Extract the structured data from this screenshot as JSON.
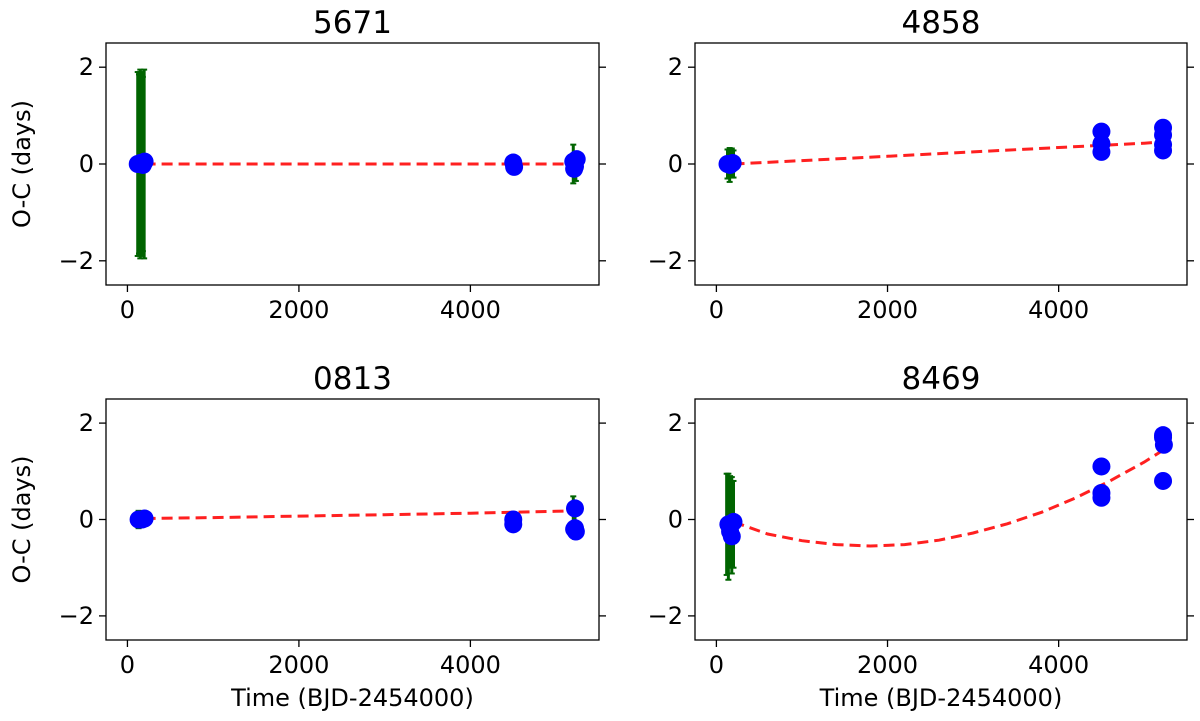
{
  "chart_data": [
    {
      "type": "scatter",
      "title": "5671",
      "xlabel": "",
      "ylabel": "O-C (days)",
      "xlim": [
        -250,
        5500
      ],
      "ylim": [
        -2.5,
        2.5
      ],
      "xticks": [
        0,
        2000,
        4000
      ],
      "yticks": [
        -2,
        0,
        2
      ],
      "xtick_labels": [
        "0",
        "2000",
        "4000"
      ],
      "ytick_labels": [
        "−2",
        "0",
        "2"
      ],
      "colors": {
        "points": "#0000ff",
        "errorbars": "#006400",
        "fit": "#ff2020"
      },
      "errorbars": [
        {
          "x": 120,
          "y": 0.0,
          "err": 1.9
        },
        {
          "x": 135,
          "y": 0.0,
          "err": 1.85
        },
        {
          "x": 150,
          "y": 0.0,
          "err": 1.95
        },
        {
          "x": 165,
          "y": 0.0,
          "err": 1.9
        },
        {
          "x": 180,
          "y": 0.0,
          "err": 1.8
        },
        {
          "x": 195,
          "y": 0.0,
          "err": 1.95
        },
        {
          "x": 5200,
          "y": 0.0,
          "err": 0.4
        },
        {
          "x": 5230,
          "y": -0.05,
          "err": 0.3
        }
      ],
      "points": [
        {
          "x": 120,
          "y": 0.0
        },
        {
          "x": 150,
          "y": 0.02
        },
        {
          "x": 180,
          "y": -0.02
        },
        {
          "x": 200,
          "y": 0.05
        },
        {
          "x": 4500,
          "y": 0.03
        },
        {
          "x": 4510,
          "y": -0.06
        },
        {
          "x": 5200,
          "y": 0.05
        },
        {
          "x": 5220,
          "y": -0.05
        },
        {
          "x": 5240,
          "y": 0.1
        },
        {
          "x": 5210,
          "y": -0.1
        }
      ],
      "fit": {
        "x": [
          200,
          1000,
          2000,
          3000,
          4000,
          5000,
          5250
        ],
        "y": [
          0.0,
          0.0,
          0.0,
          0.0,
          0.0,
          0.0,
          0.0
        ]
      }
    },
    {
      "type": "scatter",
      "title": "4858",
      "xlabel": "",
      "ylabel": "",
      "xlim": [
        -250,
        5500
      ],
      "ylim": [
        -2.5,
        2.5
      ],
      "xticks": [
        0,
        2000,
        4000
      ],
      "yticks": [
        -2,
        0,
        2
      ],
      "xtick_labels": [
        "0",
        "2000",
        "4000"
      ],
      "ytick_labels": [
        "−2",
        "0",
        "2"
      ],
      "colors": {
        "points": "#0000ff",
        "errorbars": "#006400",
        "fit": "#ff2020"
      },
      "errorbars": [
        {
          "x": 130,
          "y": 0.0,
          "err": 0.3
        },
        {
          "x": 155,
          "y": -0.02,
          "err": 0.35
        },
        {
          "x": 180,
          "y": 0.02,
          "err": 0.3
        },
        {
          "x": 200,
          "y": 0.0,
          "err": 0.28
        }
      ],
      "points": [
        {
          "x": 130,
          "y": 0.0
        },
        {
          "x": 160,
          "y": -0.02
        },
        {
          "x": 190,
          "y": 0.02
        },
        {
          "x": 4500,
          "y": 0.67
        },
        {
          "x": 4500,
          "y": 0.42
        },
        {
          "x": 4500,
          "y": 0.25
        },
        {
          "x": 5220,
          "y": 0.75
        },
        {
          "x": 5220,
          "y": 0.6
        },
        {
          "x": 5220,
          "y": 0.4
        },
        {
          "x": 5220,
          "y": 0.28
        }
      ],
      "fit": {
        "x": [
          200,
          1000,
          2000,
          3000,
          4000,
          5000,
          5250
        ],
        "y": [
          0.0,
          0.07,
          0.16,
          0.25,
          0.34,
          0.43,
          0.46
        ]
      }
    },
    {
      "type": "scatter",
      "title": "0813",
      "xlabel": "Time (BJD-2454000)",
      "ylabel": "O-C (days)",
      "xlim": [
        -250,
        5500
      ],
      "ylim": [
        -2.5,
        2.5
      ],
      "xticks": [
        0,
        2000,
        4000
      ],
      "yticks": [
        -2,
        0,
        2
      ],
      "xtick_labels": [
        "0",
        "2000",
        "4000"
      ],
      "ytick_labels": [
        "−2",
        "0",
        "2"
      ],
      "colors": {
        "points": "#0000ff",
        "errorbars": "#006400",
        "fit": "#ff2020"
      },
      "errorbars": [
        {
          "x": 130,
          "y": 0.0,
          "err": 0.18
        },
        {
          "x": 170,
          "y": 0.02,
          "err": 0.15
        },
        {
          "x": 5200,
          "y": 0.2,
          "err": 0.28
        },
        {
          "x": 5220,
          "y": -0.15,
          "err": 0.25
        }
      ],
      "points": [
        {
          "x": 130,
          "y": 0.0
        },
        {
          "x": 170,
          "y": 0.0
        },
        {
          "x": 200,
          "y": 0.02
        },
        {
          "x": 4500,
          "y": -0.1
        },
        {
          "x": 4500,
          "y": 0.0
        },
        {
          "x": 5220,
          "y": 0.23
        },
        {
          "x": 5220,
          "y": -0.18
        },
        {
          "x": 5230,
          "y": -0.25
        },
        {
          "x": 5210,
          "y": -0.2
        }
      ],
      "fit": {
        "x": [
          200,
          1000,
          2000,
          3000,
          4000,
          5000,
          5250
        ],
        "y": [
          0.02,
          0.04,
          0.07,
          0.1,
          0.13,
          0.17,
          0.18
        ]
      }
    },
    {
      "type": "scatter",
      "title": "8469",
      "xlabel": "Time (BJD-2454000)",
      "ylabel": "",
      "xlim": [
        -250,
        5500
      ],
      "ylim": [
        -2.5,
        2.5
      ],
      "xticks": [
        0,
        2000,
        4000
      ],
      "yticks": [
        -2,
        0,
        2
      ],
      "xtick_labels": [
        "0",
        "2000",
        "4000"
      ],
      "ytick_labels": [
        "−2",
        "0",
        "2"
      ],
      "colors": {
        "points": "#0000ff",
        "errorbars": "#006400",
        "fit": "#ff2020"
      },
      "errorbars": [
        {
          "x": 120,
          "y": -0.1,
          "err": 1.05
        },
        {
          "x": 140,
          "y": -0.15,
          "err": 1.1
        },
        {
          "x": 160,
          "y": -0.05,
          "err": 0.95
        },
        {
          "x": 180,
          "y": -0.12,
          "err": 1.0
        },
        {
          "x": 200,
          "y": -0.1,
          "err": 0.9
        }
      ],
      "points": [
        {
          "x": 140,
          "y": -0.1
        },
        {
          "x": 160,
          "y": -0.25
        },
        {
          "x": 180,
          "y": -0.35
        },
        {
          "x": 200,
          "y": -0.05
        },
        {
          "x": 4500,
          "y": 1.1
        },
        {
          "x": 4500,
          "y": 0.55
        },
        {
          "x": 4500,
          "y": 0.45
        },
        {
          "x": 5220,
          "y": 1.75
        },
        {
          "x": 5220,
          "y": 1.7
        },
        {
          "x": 5230,
          "y": 1.55
        },
        {
          "x": 5220,
          "y": 0.8
        }
      ],
      "fit": {
        "x": [
          200,
          600,
          1000,
          1400,
          1800,
          2200,
          2600,
          3000,
          3400,
          3800,
          4200,
          4600,
          5000,
          5250
        ],
        "y": [
          -0.05,
          -0.3,
          -0.44,
          -0.52,
          -0.55,
          -0.52,
          -0.43,
          -0.28,
          -0.09,
          0.15,
          0.45,
          0.8,
          1.19,
          1.47
        ]
      }
    }
  ]
}
